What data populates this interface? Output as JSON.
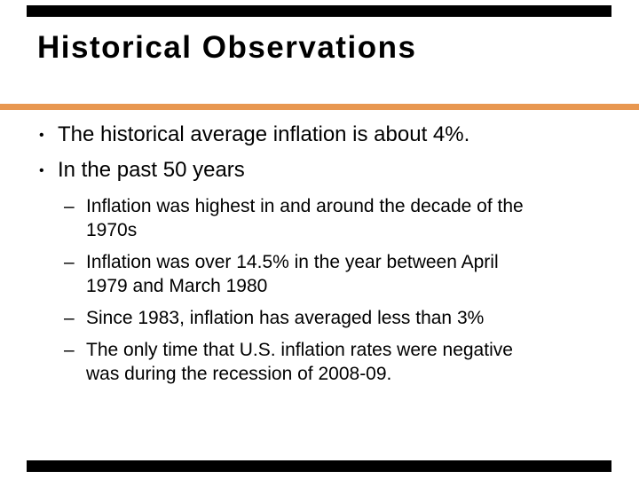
{
  "slide": {
    "title": "Historical Observations",
    "bullet_char": "•",
    "dash_char": "–",
    "colors": {
      "accent_rule": "#E89750",
      "bars": "#000000",
      "text": "#000000",
      "background": "#FFFFFF"
    },
    "bullets": {
      "b1": {
        "line1": "The historical average inflation is about 4%."
      },
      "b2": {
        "line1": "In the past 50 years"
      },
      "s1": {
        "line1": "Inflation was highest in and around the decade of the",
        "line2": "1970s"
      },
      "s2": {
        "line1": "Inflation was over 14.5% in the year between April",
        "line2": "1979 and March 1980"
      },
      "s3": {
        "line1": "Since 1983, inflation has averaged less than 3%"
      },
      "s4": {
        "line1": "The only time that U.S. inflation rates were negative",
        "line2": "was during the recession of 2008-09."
      }
    }
  }
}
